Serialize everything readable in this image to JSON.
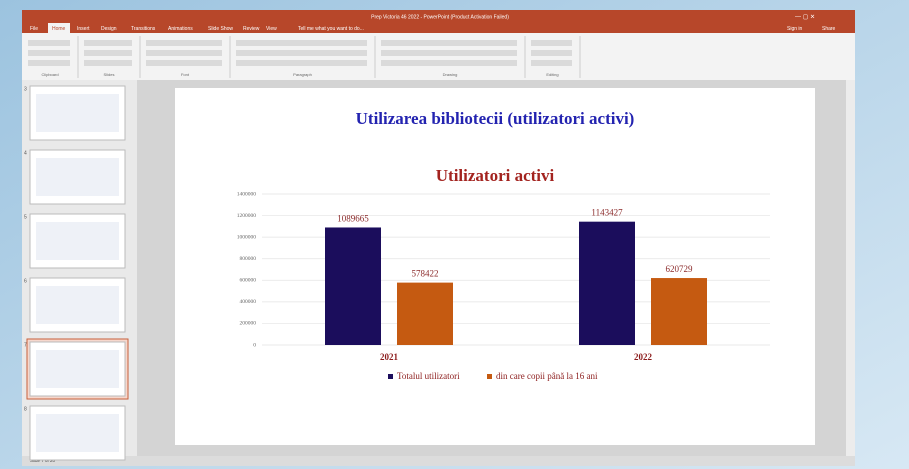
{
  "window": {
    "title": "Prep Victoria 46 2022 - PowerPoint (Product Activation Failed)",
    "tabs": [
      "File",
      "Home",
      "Insert",
      "Design",
      "Transitions",
      "Animations",
      "Slide Show",
      "Review",
      "View",
      "Tell me what you want to do..."
    ],
    "groups": [
      "Clipboard",
      "Slides",
      "Font",
      "Paragraph",
      "Drawing",
      "Editing"
    ],
    "sign_in": "Sign in",
    "share": "Share",
    "status": "Slide 7 of 20"
  },
  "thumbnails": [
    "3",
    "4",
    "5",
    "6",
    "7",
    "8"
  ],
  "slide": {
    "title": "Utilizarea bibliotecii (utilizatori activi)"
  },
  "chart_data": {
    "type": "bar",
    "title": "Utilizatori activi",
    "categories": [
      "2021",
      "2022"
    ],
    "series": [
      {
        "name": "Totalul utilizatori",
        "color": "#1b0d5c",
        "values": [
          1089665,
          1143427
        ]
      },
      {
        "name": "din care copii până la 16 ani",
        "color": "#c55a11",
        "values": [
          578422,
          620729
        ]
      }
    ],
    "ylim": [
      0,
      1400000
    ],
    "yticks": [
      0,
      200000,
      400000,
      600000,
      800000,
      1000000,
      1200000,
      1400000
    ],
    "grid": true,
    "legend": "bottom"
  }
}
